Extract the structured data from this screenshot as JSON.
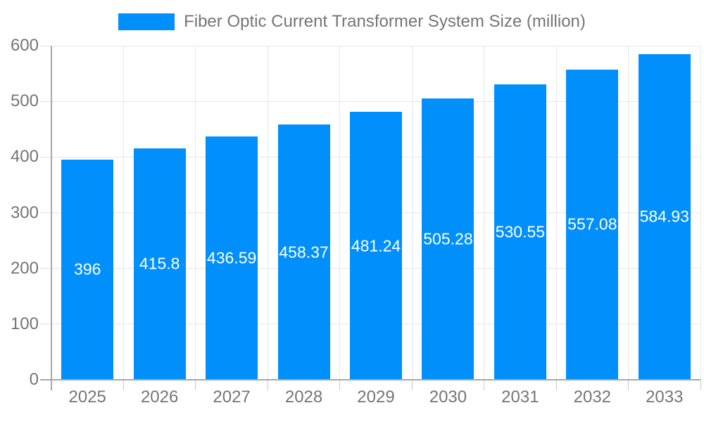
{
  "chart_data": {
    "type": "bar",
    "title": "Fiber Optic Current Transformer System Size (million)",
    "legend": {
      "position": "top",
      "items": [
        {
          "label": "Fiber Optic Current Transformer System Size (million)",
          "color": "#008FFB"
        }
      ]
    },
    "categories": [
      "2025",
      "2026",
      "2027",
      "2028",
      "2029",
      "2030",
      "2031",
      "2032",
      "2033"
    ],
    "series": [
      {
        "name": "Fiber Optic Current Transformer System Size (million)",
        "values": [
          396,
          415.8,
          436.59,
          458.37,
          481.24,
          505.28,
          530.55,
          557.08,
          584.93
        ],
        "labels": [
          "396",
          "415.8",
          "436.59",
          "458.37",
          "481.24",
          "505.28",
          "530.55",
          "557.08",
          "584.93"
        ]
      }
    ],
    "xlabel": "",
    "ylabel": "",
    "ylim": [
      0,
      600
    ],
    "y_ticks": [
      "0",
      "100",
      "200",
      "300",
      "400",
      "500",
      "600"
    ],
    "grid": {
      "horizontal": true,
      "vertical": true
    },
    "colors": {
      "bar": "#008FFB",
      "bar_label_text": "#FFFFFF",
      "axis_text": "#757575",
      "legend_text": "#757575",
      "gridline": "#E7E7E7",
      "y_tick_mark": "#E0E0E0",
      "x_tick_mark": "#C9C9C9",
      "axis_line": "#A8A8A8",
      "background": "#FFFFFF"
    }
  }
}
